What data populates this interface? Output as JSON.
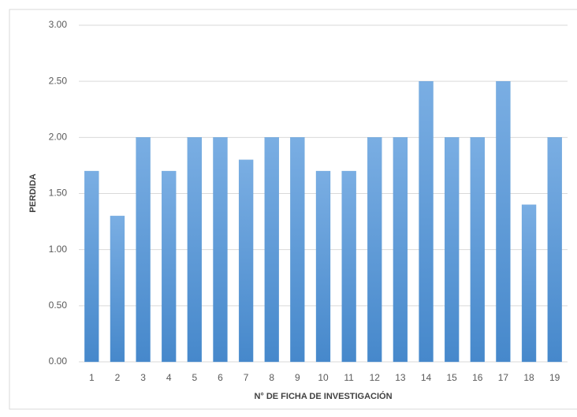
{
  "chart_data": {
    "type": "bar",
    "x_label": "N° DE FICHA DE INVESTIGACIÓN",
    "y_label": "PERDIDA",
    "categories": [
      "1",
      "2",
      "3",
      "4",
      "5",
      "6",
      "7",
      "8",
      "9",
      "10",
      "11",
      "12",
      "13",
      "14",
      "15",
      "16",
      "17",
      "18",
      "19"
    ],
    "values": [
      1.7,
      1.3,
      2.0,
      1.7,
      2.0,
      2.0,
      1.8,
      2.0,
      2.0,
      1.7,
      1.7,
      2.0,
      2.0,
      2.5,
      2.0,
      2.0,
      2.5,
      1.4,
      2.0
    ],
    "color": "#5b9bd5",
    "ylim": [
      0,
      3
    ],
    "yticks": [
      {
        "value": 0,
        "label": "0.00"
      },
      {
        "value": 0.5,
        "label": "0.50"
      },
      {
        "value": 1,
        "label": "1.00"
      },
      {
        "value": 1.5,
        "label": "1.50"
      },
      {
        "value": 2,
        "label": "2.00"
      },
      {
        "value": 2.5,
        "label": "2.50"
      },
      {
        "value": 3,
        "label": "3.00"
      }
    ],
    "grid": true
  }
}
